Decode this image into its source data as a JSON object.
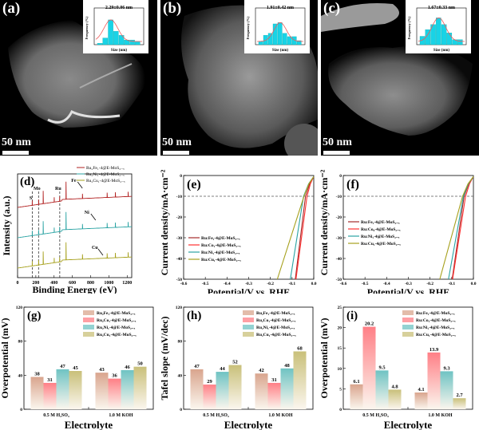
{
  "figure": {
    "tem_panels": [
      {
        "label": "(a)",
        "scale_bar": "50 nm",
        "inset_title": "2.29±0.06 nm",
        "inset_xlabel": "Size (nm)",
        "inset_ylabel": "Frequency (%)"
      },
      {
        "label": "(b)",
        "scale_bar": "50 nm",
        "inset_title": "1.91±0.42 nm",
        "inset_xlabel": "Size (nm)",
        "inset_ylabel": "Frequency (%)"
      },
      {
        "label": "(c)",
        "scale_bar": "50 nm",
        "inset_title": "1.67±0.33 nm",
        "inset_xlabel": "Size (nm)",
        "inset_ylabel": "Frequency (%)"
      }
    ]
  },
  "chart_data": [
    {
      "id": "a-inset",
      "type": "bar",
      "title": "2.29±0.06 nm",
      "xlabel": "Size (nm)",
      "ylabel": "Frequency (%)",
      "values": [
        2,
        10,
        37,
        20,
        14,
        7,
        7,
        5
      ],
      "ylim": [
        0,
        50
      ],
      "fit": "gaussian"
    },
    {
      "id": "b-inset",
      "type": "bar",
      "title": "1.91±0.42 nm",
      "xlabel": "Size (nm)",
      "ylabel": "Frequency (%)",
      "values": [
        5,
        14,
        17,
        31,
        33,
        17,
        12,
        12,
        6
      ],
      "ylim": [
        0,
        50
      ],
      "fit": "gaussian"
    },
    {
      "id": "c-inset",
      "type": "bar",
      "title": "1.67±0.33 nm",
      "xlabel": "Size (nm)",
      "ylabel": "Frequency (%)",
      "values": [
        10,
        18,
        24,
        32,
        24,
        14,
        6,
        6
      ],
      "ylim": [
        0,
        40
      ],
      "fit": "gaussian"
    },
    {
      "id": "d",
      "label": "(d)",
      "type": "line",
      "title": "",
      "xlabel": "Binding Energy (eV)",
      "ylabel": "Intensity (a.u.)",
      "xlim": [
        0,
        1250
      ],
      "xticks": [
        "0",
        "200",
        "400",
        "600",
        "800",
        "1000",
        "1200"
      ],
      "series": [
        {
          "name": "Ru₂Fe₁-4@E-MoS₂₋ₓ",
          "color": "#b22222"
        },
        {
          "name": "Ru₂Ni₁-4@E-MoS₂₋ₓ",
          "color": "#2aa3a3"
        },
        {
          "name": "Ru₂Cu₁-4@E-MoS₂₋ₓ",
          "color": "#a6a01c"
        }
      ],
      "reference_lines": [
        {
          "label": "S",
          "x": 162
        },
        {
          "label": "Mo",
          "x": 230
        },
        {
          "label": "Ru",
          "x": 462
        }
      ],
      "annotations": [
        {
          "text": "Fe",
          "x": 710
        },
        {
          "text": "Ni",
          "x": 855
        },
        {
          "text": "Cu",
          "x": 935
        }
      ],
      "peaks_eV": [
        162,
        230,
        284,
        398,
        462,
        530,
        710,
        855,
        935,
        978,
        1072,
        1210
      ]
    },
    {
      "id": "e",
      "label": "(e)",
      "type": "line",
      "xlabel": "Potential/V vs. RHE",
      "ylabel": "Current density/mA·cm⁻²",
      "xlim": [
        -0.6,
        0.0
      ],
      "ylim": [
        -50,
        0
      ],
      "xticks": [
        "-0.6",
        "-0.5",
        "-0.4",
        "-0.3",
        "-0.2",
        "-0.1",
        "0.0"
      ],
      "yticks": [
        "0",
        "-10",
        "-20",
        "-30",
        "-40",
        "-50"
      ],
      "reference_line_y": -10,
      "series": [
        {
          "name": "Ru:Fe₁-4@E-MoS₂₋ₓ",
          "color": "#a52a2a",
          "x_at_minus10": -0.038,
          "x_at_minus50": -0.085
        },
        {
          "name": "Ru:Co₁-4@E-MoS₂₋ₓ",
          "color": "#ff3030",
          "x_at_minus10": -0.031,
          "x_at_minus50": -0.082
        },
        {
          "name": "Ru:Ni₁-4@E-MoS₂₋ₓ",
          "color": "#2aa3a3",
          "x_at_minus10": -0.047,
          "x_at_minus50": -0.108
        },
        {
          "name": "Ru:Cu₁-4@E-MoS₂₋ₓ",
          "color": "#a6a01c",
          "x_at_minus10": -0.045,
          "x_at_minus50": -0.168
        }
      ]
    },
    {
      "id": "f",
      "label": "(f)",
      "type": "line",
      "xlabel": "Potential/V vs. RHE",
      "ylabel": "Current density/mA·cm⁻²",
      "xlim": [
        -0.6,
        0.0
      ],
      "ylim": [
        -50,
        0
      ],
      "xticks": [
        "-0.6",
        "-0.5",
        "-0.4",
        "-0.3",
        "-0.2",
        "-0.1",
        "0.0"
      ],
      "yticks": [
        "0",
        "-10",
        "-20",
        "-30",
        "-40",
        "-50"
      ],
      "reference_line_y": -10,
      "series": [
        {
          "name": "Ru:Fe₁-4@E-MoS₂₋ₓ",
          "color": "#a52a2a",
          "x_at_minus10": -0.043,
          "x_at_minus50": -0.098
        },
        {
          "name": "Ru:Co₀-4@E-MoS₂₋ₓ",
          "color": "#ff3030",
          "x_at_minus10": -0.036,
          "x_at_minus50": -0.096
        },
        {
          "name": "Ru:Ni₁-4@E-MoS₂₋ₓ",
          "color": "#2aa3a3",
          "x_at_minus10": -0.046,
          "x_at_minus50": -0.115
        },
        {
          "name": "Ru:Cu₁-4@E-MoS₂₋ₓ",
          "color": "#a6a01c",
          "x_at_minus10": -0.05,
          "x_at_minus50": -0.155
        }
      ]
    },
    {
      "id": "g",
      "label": "(g)",
      "type": "bar",
      "xlabel": "Electrolyte",
      "ylabel": "Overpotential (mV)",
      "categories": [
        "0.5 M H₂SO₄",
        "1.0 M KOH"
      ],
      "ylim": [
        0,
        120
      ],
      "yticks": [
        "0",
        "40",
        "80",
        "120"
      ],
      "series": [
        {
          "name": "Ru₂Fe₁-4@E-MoS₂₋ₓ",
          "color": "#d9a58e",
          "values": [
            38,
            43
          ]
        },
        {
          "name": "Ru₂Co₁-4@E-MoS₂₋ₓ",
          "color": "#ff7f86",
          "values": [
            31,
            36
          ]
        },
        {
          "name": "Ru₂Ni₁-4@E-MoS₂₋ₓ",
          "color": "#6fc3c3",
          "values": [
            47,
            46
          ]
        },
        {
          "name": "Ru₂Cu₁-4@E-MoS₂₋ₓ",
          "color": "#c9c07a",
          "values": [
            45,
            50
          ]
        }
      ]
    },
    {
      "id": "h",
      "label": "(h)",
      "type": "bar",
      "xlabel": "Electrolyte",
      "ylabel": "Tafel slope (mV/dec)",
      "categories": [
        "0.5 M H₂SO₄",
        "1.0 M KOH"
      ],
      "ylim": [
        0,
        120
      ],
      "yticks": [
        "0",
        "40",
        "80",
        "120"
      ],
      "series": [
        {
          "name": "Ru₂Fe₁-4@E-MoS₂₋ₓ",
          "color": "#d9a58e",
          "values": [
            47,
            42
          ]
        },
        {
          "name": "Ru₂Co₁-4@E-MoS₂₋ₓ",
          "color": "#ff7f86",
          "values": [
            29,
            31
          ]
        },
        {
          "name": "Ru₂Ni₁-4@E-MoS₂₋ₓ",
          "color": "#6fc3c3",
          "values": [
            44,
            48
          ]
        },
        {
          "name": "Ru₂Cu₁-4@E-MoS₂₋ₓ",
          "color": "#c9c07a",
          "values": [
            52,
            68
          ]
        }
      ]
    },
    {
      "id": "i",
      "label": "(i)",
      "type": "bar",
      "xlabel": "Electrolyte",
      "ylabel": "Overpotential (mV)",
      "categories": [
        "0.5 M H₂SO₄",
        "1.0 M KOH"
      ],
      "ylim": [
        0,
        25
      ],
      "yticks": [
        "0",
        "5",
        "10",
        "15",
        "20",
        "25"
      ],
      "series": [
        {
          "name": "Ru:Fe₁-4@E-MoS₂₋ₓ",
          "color": "#d9a58e",
          "values": [
            6.1,
            4.1
          ]
        },
        {
          "name": "Ru:Co₁-4@E-MoS₂₋ₓ",
          "color": "#ff7f86",
          "values": [
            20.2,
            13.9
          ]
        },
        {
          "name": "Ru:Ni₁-4@E-MoS₂₋ₓ",
          "color": "#6fc3c3",
          "values": [
            9.5,
            9.3
          ]
        },
        {
          "name": "Ru:Cu₁-4@E-MoS₂₋ₓ",
          "color": "#c9c07a",
          "values": [
            4.8,
            2.7
          ]
        }
      ]
    }
  ]
}
